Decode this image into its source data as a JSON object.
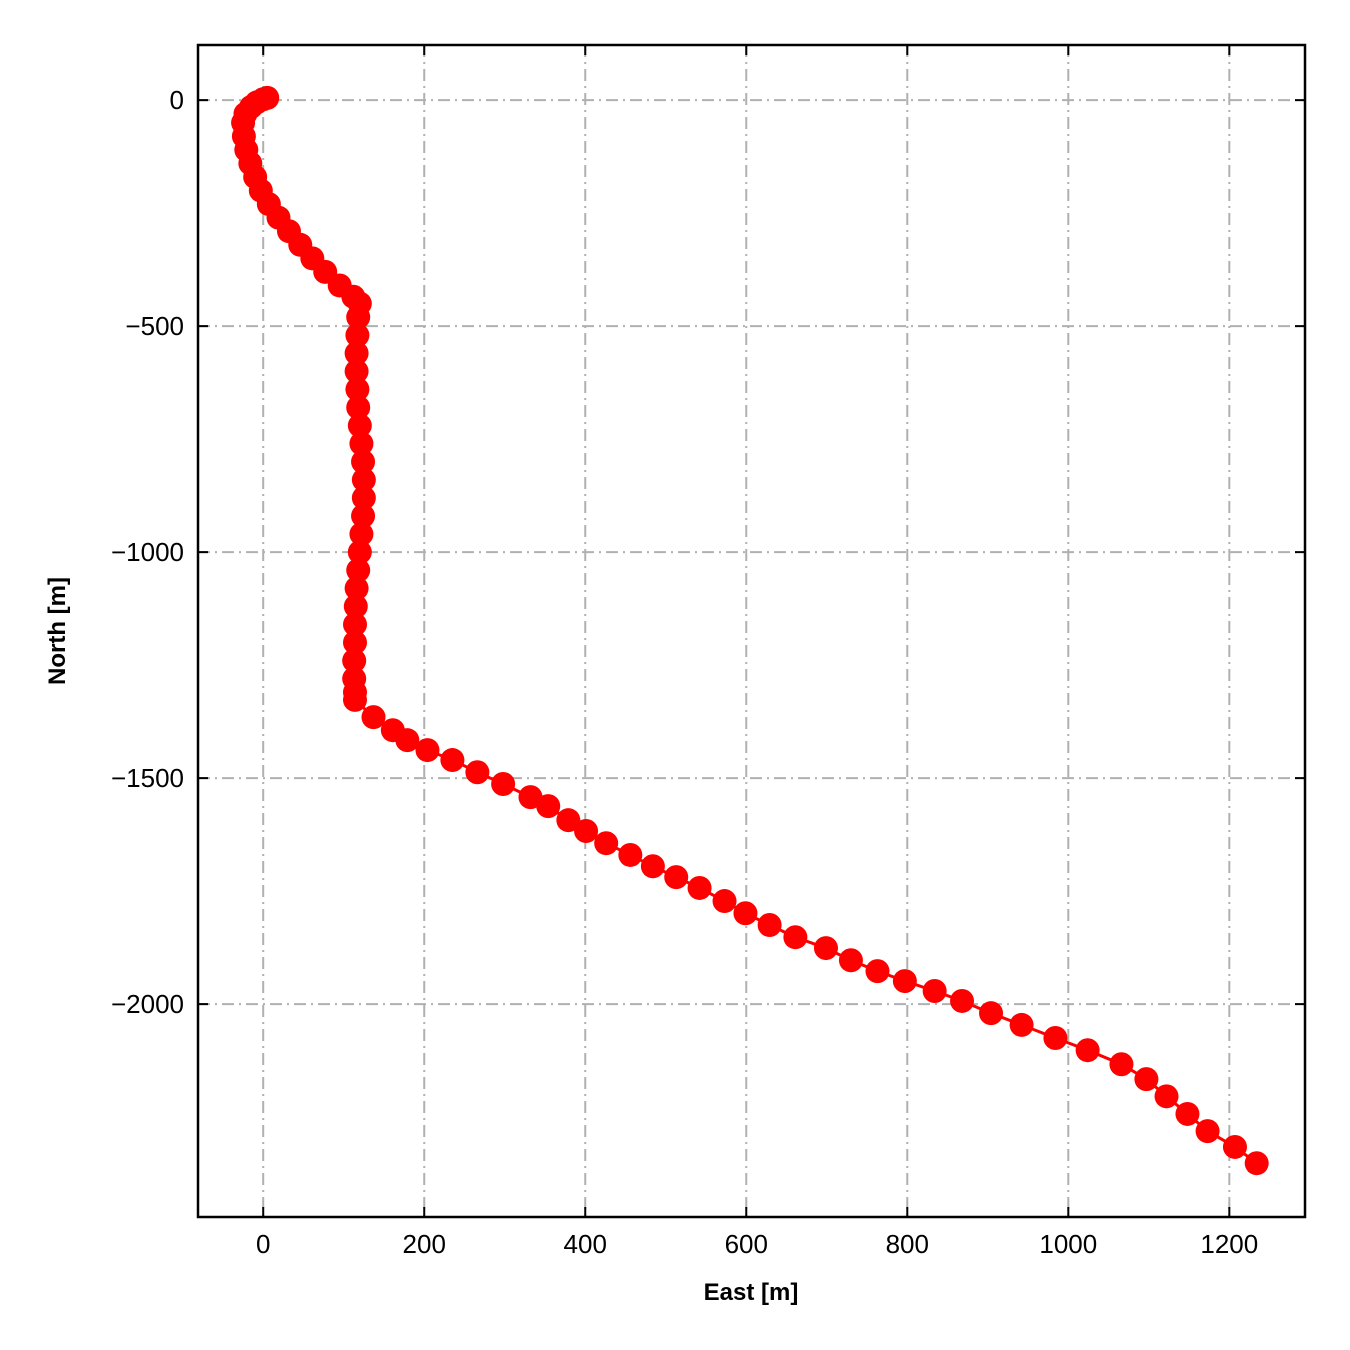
{
  "chart_data": {
    "type": "line",
    "marker": true,
    "xlabel": "East [m]",
    "ylabel": "North [m]",
    "x": [
      5,
      0,
      -8,
      -15,
      -22,
      -25,
      -24,
      -21,
      -16,
      -10,
      -3,
      7,
      19,
      32,
      46,
      61,
      77,
      95,
      112,
      120,
      118,
      117,
      116,
      116,
      117,
      118,
      120,
      122,
      124,
      125,
      125,
      124,
      122,
      120,
      118,
      116,
      115,
      114,
      114,
      113,
      113,
      114,
      114,
      137,
      161,
      179,
      204,
      235,
      266,
      298,
      332,
      354,
      379,
      401,
      426,
      456,
      484,
      513,
      542,
      573,
      599,
      629,
      661,
      699,
      730,
      763,
      797,
      834,
      868,
      904,
      942,
      984,
      1024,
      1066,
      1097,
      1122,
      1148,
      1173,
      1207,
      1234
    ],
    "series": [
      {
        "color": "#ff0000",
        "values": [
          5,
          2,
          -5,
          -15,
          -30,
          -50,
          -80,
          -110,
          -140,
          -170,
          -200,
          -230,
          -260,
          -290,
          -320,
          -350,
          -380,
          -410,
          -435,
          -450,
          -480,
          -520,
          -560,
          -600,
          -640,
          -680,
          -720,
          -760,
          -800,
          -840,
          -880,
          -920,
          -960,
          -1000,
          -1040,
          -1080,
          -1120,
          -1160,
          -1200,
          -1240,
          -1280,
          -1310,
          -1327,
          -1365,
          -1394,
          -1416,
          -1438,
          -1460,
          -1487,
          -1513,
          -1542,
          -1562,
          -1593,
          -1617,
          -1644,
          -1670,
          -1695,
          -1719,
          -1743,
          -1772,
          -1799,
          -1825,
          -1852,
          -1876,
          -1903,
          -1927,
          -1949,
          -1971,
          -1993,
          -2020,
          -2046,
          -2075,
          -2102,
          -2133,
          -2166,
          -2204,
          -2243,
          -2281,
          -2316,
          -2352
        ]
      }
    ],
    "xlim": [
      -81,
      1294
    ],
    "ylim": [
      -2471,
      122
    ],
    "xticks": [
      0,
      200,
      400,
      600,
      800,
      1000,
      1200
    ],
    "yticks": [
      0,
      {
        "value": -500,
        "label": "−500"
      },
      {
        "value": -1000,
        "label": "−1000"
      },
      {
        "value": -1500,
        "label": "−1500"
      },
      {
        "value": -2000,
        "label": "−2000"
      }
    ],
    "grid": true
  }
}
